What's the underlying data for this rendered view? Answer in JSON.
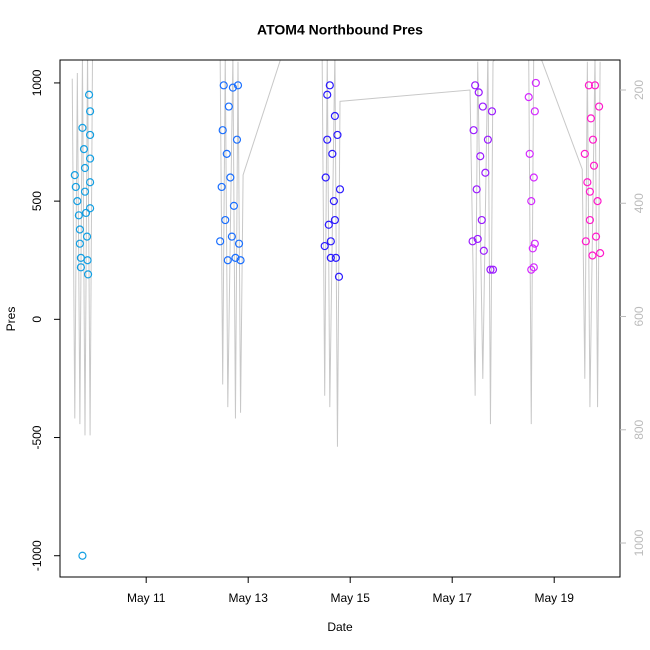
{
  "chart_data": {
    "type": "scatter",
    "title": "ATOM4 Northbound Pres",
    "xlabel": "Date",
    "ylabel": "Pres",
    "xlim": [
      9.31,
      20.29
    ],
    "xticks": [
      {
        "value": 11,
        "label": "May 11"
      },
      {
        "value": 13,
        "label": "May 13"
      },
      {
        "value": 15,
        "label": "May 15"
      },
      {
        "value": 17,
        "label": "May 17"
      },
      {
        "value": 19,
        "label": "May 19"
      }
    ],
    "ylim": [
      -1090,
      1097
    ],
    "yticks": [
      1000,
      500,
      0,
      -500,
      -1000
    ],
    "y2lim": [
      1060,
      147
    ],
    "y2ticks": [
      200,
      400,
      600,
      800,
      1000
    ],
    "series": [
      {
        "color": "#129fe3",
        "x": [
          9.6,
          9.62,
          9.65,
          9.68,
          9.7,
          9.7,
          9.72,
          9.72,
          9.75,
          9.78,
          9.8,
          9.8,
          9.82,
          9.84,
          9.85,
          9.86,
          9.88,
          9.9,
          9.9,
          9.9,
          9.9,
          9.9,
          9.75
        ],
        "values": [
          610,
          560,
          500,
          440,
          380,
          320,
          260,
          220,
          810,
          720,
          640,
          540,
          450,
          350,
          250,
          190,
          950,
          880,
          780,
          680,
          580,
          470,
          -1000
        ]
      },
      {
        "color": "#1a6fff",
        "x": [
          12.45,
          12.48,
          12.5,
          12.52,
          12.55,
          12.58,
          12.6,
          12.62,
          12.65,
          12.68,
          12.7,
          12.72,
          12.75,
          12.78,
          12.8,
          12.82,
          12.85
        ],
        "values": [
          330,
          560,
          800,
          990,
          420,
          700,
          250,
          900,
          600,
          350,
          980,
          480,
          260,
          760,
          990,
          320,
          250
        ]
      },
      {
        "color": "#2b1aff",
        "x": [
          14.5,
          14.52,
          14.55,
          14.58,
          14.6,
          14.62,
          14.65,
          14.68,
          14.7,
          14.72,
          14.75,
          14.78,
          14.8,
          14.62,
          14.55,
          14.7
        ],
        "values": [
          310,
          600,
          950,
          400,
          990,
          260,
          700,
          500,
          860,
          260,
          780,
          180,
          550,
          330,
          760,
          420
        ]
      },
      {
        "color": "#9a1aff",
        "x": [
          17.4,
          17.42,
          17.45,
          17.48,
          17.5,
          17.52,
          17.55,
          17.58,
          17.6,
          17.62,
          17.65,
          17.7,
          17.75,
          17.78,
          17.8
        ],
        "values": [
          330,
          800,
          990,
          550,
          340,
          960,
          690,
          420,
          900,
          290,
          620,
          760,
          210,
          880,
          210
        ]
      },
      {
        "color": "#d42aff",
        "x": [
          18.5,
          18.52,
          18.55,
          18.58,
          18.6,
          18.62,
          18.64,
          18.55,
          18.6,
          18.62
        ],
        "values": [
          940,
          700,
          500,
          300,
          220,
          880,
          1000,
          210,
          600,
          320
        ]
      },
      {
        "color": "#ff1acb",
        "x": [
          19.6,
          19.62,
          19.65,
          19.68,
          19.7,
          19.72,
          19.75,
          19.78,
          19.8,
          19.82,
          19.85,
          19.88,
          19.9,
          19.7,
          19.76
        ],
        "values": [
          700,
          330,
          580,
          990,
          420,
          850,
          270,
          650,
          990,
          350,
          500,
          900,
          280,
          540,
          760
        ]
      },
      {
        "type": "line",
        "axis": "y2",
        "color": "#c8c8c8",
        "x": [
          9.55,
          9.6,
          9.65,
          9.7,
          9.75,
          9.8,
          9.85,
          9.9,
          9.95,
          12.0,
          12.45,
          12.5,
          12.55,
          12.6,
          12.7,
          12.75,
          12.8,
          12.85,
          12.9,
          13.8,
          14.45,
          14.5,
          14.55,
          14.6,
          14.7,
          14.75,
          14.8,
          17.35,
          17.45,
          17.5,
          17.6,
          17.7,
          17.75,
          17.8,
          18.1,
          18.5,
          18.55,
          18.6,
          19.55,
          19.6,
          19.65,
          19.7,
          19.8,
          19.85,
          19.9
        ],
        "values": [
          180,
          780,
          170,
          790,
          140,
          810,
          130,
          810,
          100,
          110,
          140,
          720,
          140,
          760,
          140,
          780,
          150,
          770,
          350,
          100,
          140,
          740,
          140,
          760,
          130,
          830,
          220,
          200,
          740,
          150,
          710,
          130,
          790,
          150,
          120,
          140,
          790,
          110,
          340,
          710,
          150,
          760,
          140,
          760,
          150
        ]
      }
    ]
  }
}
